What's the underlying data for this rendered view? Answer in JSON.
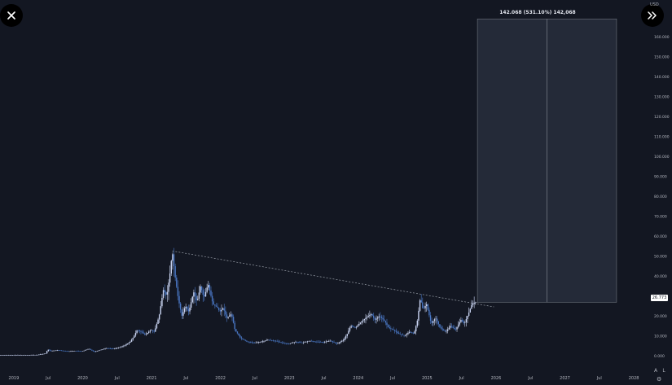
{
  "colors": {
    "background": "#131722",
    "candle": "#c9d4f2",
    "candle_accent": "#4a78c6",
    "trendline": "#9aa0aa",
    "measure_box": "#242a38",
    "measure_line": "#7d828c",
    "axis_text": "#b2b5be"
  },
  "toolbar": {
    "close_icon": "close-icon",
    "expand_icon": "double-chevron-right-icon",
    "axis_top_label": "USD",
    "scale_auto_label": "A",
    "scale_log_label": "L",
    "settings_icon": "gear-icon"
  },
  "measure": {
    "label": "142.068 (531.10%) 142,068"
  },
  "last_price_label": "26.773",
  "chart_data": {
    "type": "candlestick",
    "x_axis_labels": [
      "2019",
      "Jul",
      "2020",
      "Jul",
      "2021",
      "Jul",
      "2022",
      "Jul",
      "2023",
      "Jul",
      "2024",
      "Jul",
      "2025",
      "Jul",
      "2026",
      "Jul",
      "2027",
      "Jul",
      "2028"
    ],
    "y_axis_labels": [
      "0.000",
      "10.000",
      "20.000",
      "30.000",
      "40.000",
      "50.000",
      "60.000",
      "70.000",
      "80.000",
      "90.000",
      "100.000",
      "110.000",
      "120.000",
      "130.000",
      "140.000",
      "150.000",
      "160.000"
    ],
    "ylim": [
      -2,
      175
    ],
    "xlim": [
      2018.8,
      2028.2
    ],
    "last_price": 26.773,
    "trendline": {
      "x": [
        2021.3,
        2025.97
      ],
      "y": [
        52.5,
        24.5
      ]
    },
    "measure_range": {
      "x": [
        2025.73,
        2027.75
      ],
      "y": [
        26.8,
        168.8
      ],
      "change": 142.068
    },
    "series": [
      {
        "points": [
          [
            2018.8,
            0.3
          ],
          [
            2019.0,
            0.3
          ],
          [
            2019.2,
            0.35
          ],
          [
            2019.35,
            0.45
          ],
          [
            2019.48,
            1.2
          ],
          [
            2019.5,
            3.2
          ],
          [
            2019.55,
            2.4
          ],
          [
            2019.65,
            2.8
          ],
          [
            2019.8,
            2.2
          ],
          [
            2019.9,
            2.5
          ],
          [
            2020.0,
            2.2
          ],
          [
            2020.1,
            3.5
          ],
          [
            2020.18,
            2.0
          ],
          [
            2020.25,
            2.8
          ],
          [
            2020.35,
            3.8
          ],
          [
            2020.45,
            3.5
          ],
          [
            2020.55,
            4.2
          ],
          [
            2020.62,
            5.2
          ],
          [
            2020.7,
            7
          ],
          [
            2020.75,
            9.5
          ],
          [
            2020.8,
            13
          ],
          [
            2020.86,
            12
          ],
          [
            2020.92,
            10.5
          ],
          [
            2021.0,
            13
          ],
          [
            2021.05,
            12
          ],
          [
            2021.12,
            20
          ],
          [
            2021.18,
            33
          ],
          [
            2021.23,
            30
          ],
          [
            2021.28,
            42
          ],
          [
            2021.31,
            52.5
          ],
          [
            2021.35,
            40
          ],
          [
            2021.4,
            28
          ],
          [
            2021.45,
            20
          ],
          [
            2021.5,
            25
          ],
          [
            2021.55,
            22
          ],
          [
            2021.62,
            32
          ],
          [
            2021.67,
            27
          ],
          [
            2021.72,
            35
          ],
          [
            2021.77,
            29
          ],
          [
            2021.83,
            36
          ],
          [
            2021.9,
            26
          ],
          [
            2021.97,
            24
          ],
          [
            2022.0,
            22
          ],
          [
            2022.05,
            24
          ],
          [
            2022.1,
            19
          ],
          [
            2022.17,
            21
          ],
          [
            2022.22,
            13
          ],
          [
            2022.3,
            9
          ],
          [
            2022.4,
            7
          ],
          [
            2022.5,
            6.5
          ],
          [
            2022.6,
            7
          ],
          [
            2022.7,
            8
          ],
          [
            2022.8,
            7.5
          ],
          [
            2022.9,
            6.5
          ],
          [
            2023.0,
            6
          ],
          [
            2023.1,
            7
          ],
          [
            2023.2,
            6.5
          ],
          [
            2023.3,
            7.5
          ],
          [
            2023.4,
            7
          ],
          [
            2023.5,
            6.8
          ],
          [
            2023.6,
            7.5
          ],
          [
            2023.7,
            6
          ],
          [
            2023.8,
            8
          ],
          [
            2023.85,
            11
          ],
          [
            2023.9,
            15
          ],
          [
            2023.97,
            14
          ],
          [
            2024.05,
            17
          ],
          [
            2024.12,
            19
          ],
          [
            2024.2,
            21
          ],
          [
            2024.25,
            18
          ],
          [
            2024.32,
            20
          ],
          [
            2024.4,
            17
          ],
          [
            2024.45,
            14
          ],
          [
            2024.52,
            13
          ],
          [
            2024.6,
            11
          ],
          [
            2024.68,
            10
          ],
          [
            2024.75,
            12
          ],
          [
            2024.82,
            11
          ],
          [
            2024.87,
            18
          ],
          [
            2024.91,
            29
          ],
          [
            2024.95,
            23
          ],
          [
            2025.0,
            26
          ],
          [
            2025.07,
            16
          ],
          [
            2025.13,
            19
          ],
          [
            2025.2,
            14
          ],
          [
            2025.28,
            12
          ],
          [
            2025.35,
            15
          ],
          [
            2025.42,
            13
          ],
          [
            2025.5,
            18
          ],
          [
            2025.55,
            16
          ],
          [
            2025.62,
            22
          ],
          [
            2025.66,
            26
          ],
          [
            2025.7,
            26.773
          ]
        ]
      }
    ]
  }
}
